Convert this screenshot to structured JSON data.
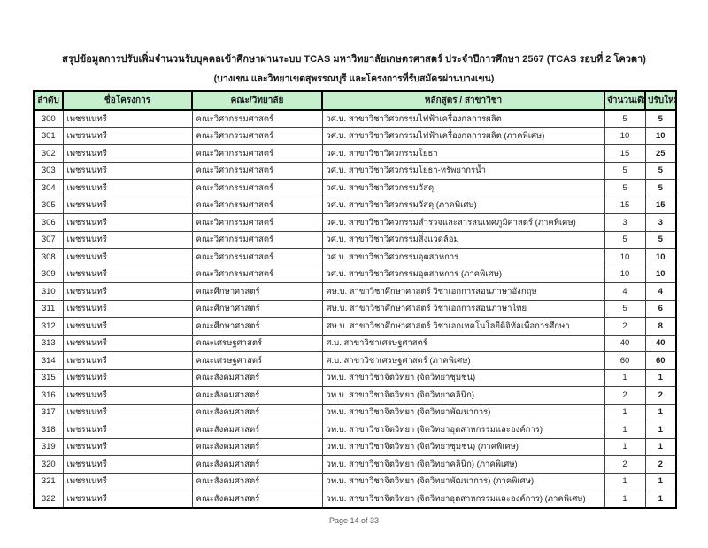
{
  "page": {
    "title": "สรุปข้อมูลการปรับเพิ่มจำนวนรับบุคคลเข้าศึกษาผ่านระบบ TCAS มหาวิทยาลัยเกษตรศาสตร์ ประจำปีการศึกษา 2567 (TCAS รอบที่ 2 โควตา)",
    "subtitle": "(บางเขน และวิทยาเขตสุพรรณบุรี และโครงการที่รับสมัครผ่านบางเขน)",
    "footer": "Page 14 of 33"
  },
  "colors": {
    "header_bg": "#c6efce",
    "border_outer": "#000000",
    "border_inner": "#3f3f3f",
    "footer_text": "#595959"
  },
  "table": {
    "headers": [
      "ลำดับ",
      "ชื่อโครงการ",
      "คณะ/วิทยาลัย",
      "หลักสูตร / สาขาวิชา",
      "จำนวนเดิม",
      "ปรับใหม่"
    ],
    "col_names": [
      "order-number",
      "project-name",
      "faculty",
      "program",
      "original-count",
      "revised-count"
    ],
    "rows": [
      [
        "300",
        "เพชรนนทรี",
        "คณะวิศวกรรมศาสตร์",
        "วศ.บ. สาขาวิชาวิศวกรรมไฟฟ้าเครื่องกลการผลิต",
        "5",
        "5"
      ],
      [
        "301",
        "เพชรนนทรี",
        "คณะวิศวกรรมศาสตร์",
        "วศ.บ. สาขาวิชาวิศวกรรมไฟฟ้าเครื่องกลการผลิต (ภาคพิเศษ)",
        "10",
        "10"
      ],
      [
        "302",
        "เพชรนนทรี",
        "คณะวิศวกรรมศาสตร์",
        "วศ.บ. สาขาวิชาวิศวกรรมโยธา",
        "15",
        "25"
      ],
      [
        "303",
        "เพชรนนทรี",
        "คณะวิศวกรรมศาสตร์",
        "วศ.บ. สาขาวิชาวิศวกรรมโยธา-ทรัพยากรน้ำ",
        "5",
        "5"
      ],
      [
        "304",
        "เพชรนนทรี",
        "คณะวิศวกรรมศาสตร์",
        "วศ.บ. สาขาวิชาวิศวกรรมวัสดุ",
        "5",
        "5"
      ],
      [
        "305",
        "เพชรนนทรี",
        "คณะวิศวกรรมศาสตร์",
        "วศ.บ. สาขาวิชาวิศวกรรมวัสดุ (ภาคพิเศษ)",
        "15",
        "15"
      ],
      [
        "306",
        "เพชรนนทรี",
        "คณะวิศวกรรมศาสตร์",
        "วศ.บ. สาขาวิชาวิศวกรรมสำรวจและสารสนเทศภูมิศาสตร์ (ภาคพิเศษ)",
        "3",
        "3"
      ],
      [
        "307",
        "เพชรนนทรี",
        "คณะวิศวกรรมศาสตร์",
        "วศ.บ. สาขาวิชาวิศวกรรมสิ่งแวดล้อม",
        "5",
        "5"
      ],
      [
        "308",
        "เพชรนนทรี",
        "คณะวิศวกรรมศาสตร์",
        "วศ.บ. สาขาวิชาวิศวกรรมอุตสาหการ",
        "10",
        "10"
      ],
      [
        "309",
        "เพชรนนทรี",
        "คณะวิศวกรรมศาสตร์",
        "วศ.บ. สาขาวิชาวิศวกรรมอุตสาหการ (ภาคพิเศษ)",
        "10",
        "10"
      ],
      [
        "310",
        "เพชรนนทรี",
        "คณะศึกษาศาสตร์",
        "ศษ.บ. สาขาวิชาศึกษาศาสตร์ วิชาเอกการสอนภาษาอังกฤษ",
        "4",
        "4"
      ],
      [
        "311",
        "เพชรนนทรี",
        "คณะศึกษาศาสตร์",
        "ศษ.บ. สาขาวิชาศึกษาศาสตร์ วิชาเอกการสอนภาษาไทย",
        "5",
        "6"
      ],
      [
        "312",
        "เพชรนนทรี",
        "คณะศึกษาศาสตร์",
        "ศษ.บ. สาขาวิชาศึกษาศาสตร์ วิชาเอกเทคโนโลยีดิจิทัลเพื่อการศึกษา",
        "2",
        "8"
      ],
      [
        "313",
        "เพชรนนทรี",
        "คณะเศรษฐศาสตร์",
        "ศ.บ. สาขาวิชาเศรษฐศาสตร์",
        "40",
        "40"
      ],
      [
        "314",
        "เพชรนนทรี",
        "คณะเศรษฐศาสตร์",
        "ศ.บ. สาขาวิชาเศรษฐศาสตร์ (ภาคพิเศษ)",
        "60",
        "60"
      ],
      [
        "315",
        "เพชรนนทรี",
        "คณะสังคมศาสตร์",
        "วท.บ. สาขาวิชาจิตวิทยา (จิตวิทยาชุมชน)",
        "1",
        "1"
      ],
      [
        "316",
        "เพชรนนทรี",
        "คณะสังคมศาสตร์",
        "วท.บ. สาขาวิชาจิตวิทยา (จิตวิทยาคลินิก)",
        "2",
        "2"
      ],
      [
        "317",
        "เพชรนนทรี",
        "คณะสังคมศาสตร์",
        "วท.บ. สาขาวิชาจิตวิทยา (จิตวิทยาพัฒนาการ)",
        "1",
        "1"
      ],
      [
        "318",
        "เพชรนนทรี",
        "คณะสังคมศาสตร์",
        "วท.บ. สาขาวิชาจิตวิทยา (จิตวิทยาอุตสาหกรรมและองค์การ)",
        "1",
        "1"
      ],
      [
        "319",
        "เพชรนนทรี",
        "คณะสังคมศาสตร์",
        "วท.บ. สาขาวิชาจิตวิทยา (จิตวิทยาชุมชน) (ภาคพิเศษ)",
        "1",
        "1"
      ],
      [
        "320",
        "เพชรนนทรี",
        "คณะสังคมศาสตร์",
        "วท.บ. สาขาวิชาจิตวิทยา (จิตวิทยาคลินิก) (ภาคพิเศษ)",
        "2",
        "2"
      ],
      [
        "321",
        "เพชรนนทรี",
        "คณะสังคมศาสตร์",
        "วท.บ. สาขาวิชาจิตวิทยา (จิตวิทยาพัฒนาการ) (ภาคพิเศษ)",
        "1",
        "1"
      ],
      [
        "322",
        "เพชรนนทรี",
        "คณะสังคมศาสตร์",
        "วท.บ. สาขาวิชาจิตวิทยา (จิตวิทยาอุตสาหกรรมและองค์การ) (ภาคพิเศษ)",
        "1",
        "1"
      ]
    ]
  }
}
